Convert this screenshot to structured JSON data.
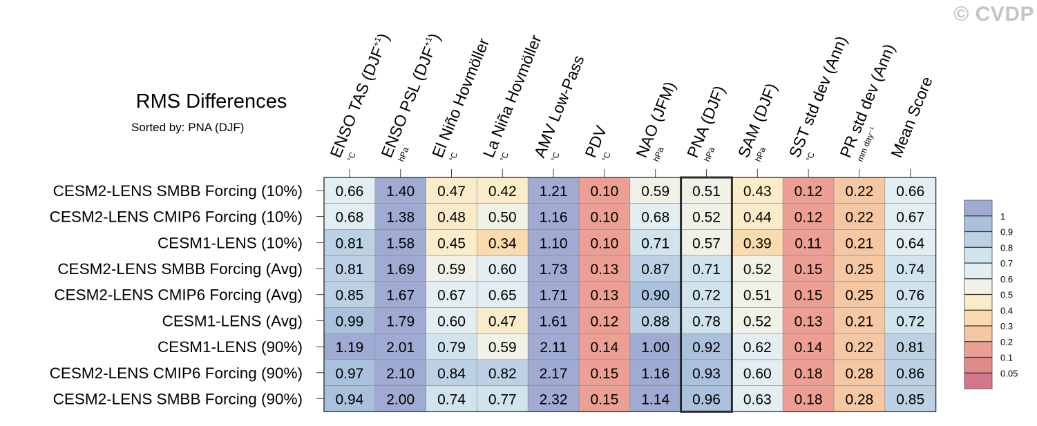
{
  "watermark": "© CVDP",
  "chart_data": {
    "type": "heatmap",
    "title": "RMS Differences",
    "subtitle": "Sorted by: PNA (DJF)",
    "highlighted_column": "PNA (DJF)",
    "columns": [
      {
        "name": "ENSO TAS (DJF",
        "sup": "+1",
        "close": ")",
        "unit": "°C"
      },
      {
        "name": "ENSO PSL (DJF",
        "sup": "+1",
        "close": ")",
        "unit": "hPa"
      },
      {
        "name": "El Niño Hovmöller",
        "sup": "",
        "close": "",
        "unit": "°C"
      },
      {
        "name": "La Niña Hovmöller",
        "sup": "",
        "close": "",
        "unit": "°C"
      },
      {
        "name": "AMV Low-Pass",
        "sup": "",
        "close": "",
        "unit": "°C"
      },
      {
        "name": "PDV",
        "sup": "",
        "close": "",
        "unit": "°C"
      },
      {
        "name": "NAO (JFM)",
        "sup": "",
        "close": "",
        "unit": "hPa"
      },
      {
        "name": "PNA (DJF)",
        "sup": "",
        "close": "",
        "unit": "hPa"
      },
      {
        "name": "SAM (DJF)",
        "sup": "",
        "close": "",
        "unit": "hPa"
      },
      {
        "name": "SST std dev (Ann)",
        "sup": "",
        "close": "",
        "unit": "°C"
      },
      {
        "name": "PR std dev (Ann)",
        "sup": "",
        "close": "",
        "unit": "mm day⁻¹"
      },
      {
        "name": "Mean Score",
        "sup": "",
        "close": "",
        "unit": ""
      }
    ],
    "rows": [
      "CESM2-LENS SMBB Forcing (10%)",
      "CESM2-LENS CMIP6 Forcing (10%)",
      "CESM1-LENS (10%)",
      "CESM2-LENS SMBB Forcing (Avg)",
      "CESM2-LENS CMIP6 Forcing (Avg)",
      "CESM1-LENS (Avg)",
      "CESM1-LENS (90%)",
      "CESM2-LENS CMIP6 Forcing (90%)",
      "CESM2-LENS SMBB Forcing (90%)"
    ],
    "values": [
      [
        0.66,
        1.4,
        0.47,
        0.42,
        1.21,
        0.1,
        0.59,
        0.51,
        0.43,
        0.12,
        0.22,
        0.66
      ],
      [
        0.68,
        1.38,
        0.48,
        0.5,
        1.16,
        0.1,
        0.68,
        0.52,
        0.44,
        0.12,
        0.22,
        0.67
      ],
      [
        0.81,
        1.58,
        0.45,
        0.34,
        1.1,
        0.1,
        0.71,
        0.57,
        0.39,
        0.11,
        0.21,
        0.64
      ],
      [
        0.81,
        1.69,
        0.59,
        0.6,
        1.73,
        0.13,
        0.87,
        0.71,
        0.52,
        0.15,
        0.25,
        0.74
      ],
      [
        0.85,
        1.67,
        0.67,
        0.65,
        1.71,
        0.13,
        0.9,
        0.72,
        0.51,
        0.15,
        0.25,
        0.76
      ],
      [
        0.99,
        1.79,
        0.6,
        0.47,
        1.61,
        0.12,
        0.88,
        0.78,
        0.52,
        0.13,
        0.21,
        0.72
      ],
      [
        1.19,
        2.01,
        0.79,
        0.59,
        2.11,
        0.14,
        1.0,
        0.92,
        0.62,
        0.14,
        0.22,
        0.81
      ],
      [
        0.97,
        2.1,
        0.84,
        0.82,
        2.17,
        0.15,
        1.16,
        0.93,
        0.6,
        0.18,
        0.28,
        0.86
      ],
      [
        0.94,
        2.0,
        0.74,
        0.77,
        2.32,
        0.15,
        1.14,
        0.96,
        0.63,
        0.18,
        0.28,
        0.85
      ]
    ],
    "colorbar": {
      "labels": [
        "1",
        "0.9",
        "0.8",
        "0.7",
        "0.6",
        "0.5",
        "0.4",
        "0.3",
        "0.2",
        "0.1",
        "0.05"
      ],
      "bins": [
        {
          "min": 1.0,
          "color": "#9fabd3"
        },
        {
          "min": 0.9,
          "color": "#a9c1dc"
        },
        {
          "min": 0.8,
          "color": "#bcd2e4"
        },
        {
          "min": 0.7,
          "color": "#d1e3ed"
        },
        {
          "min": 0.6,
          "color": "#e3eef3"
        },
        {
          "min": 0.5,
          "color": "#f2f1e8"
        },
        {
          "min": 0.4,
          "color": "#fbecc9"
        },
        {
          "min": 0.3,
          "color": "#fadbae"
        },
        {
          "min": 0.2,
          "color": "#f5c7a3"
        },
        {
          "min": 0.1,
          "color": "#ec9f92"
        },
        {
          "min": 0.05,
          "color": "#e08a8a"
        },
        {
          "min": 0.0,
          "color": "#d3778b"
        }
      ]
    }
  }
}
